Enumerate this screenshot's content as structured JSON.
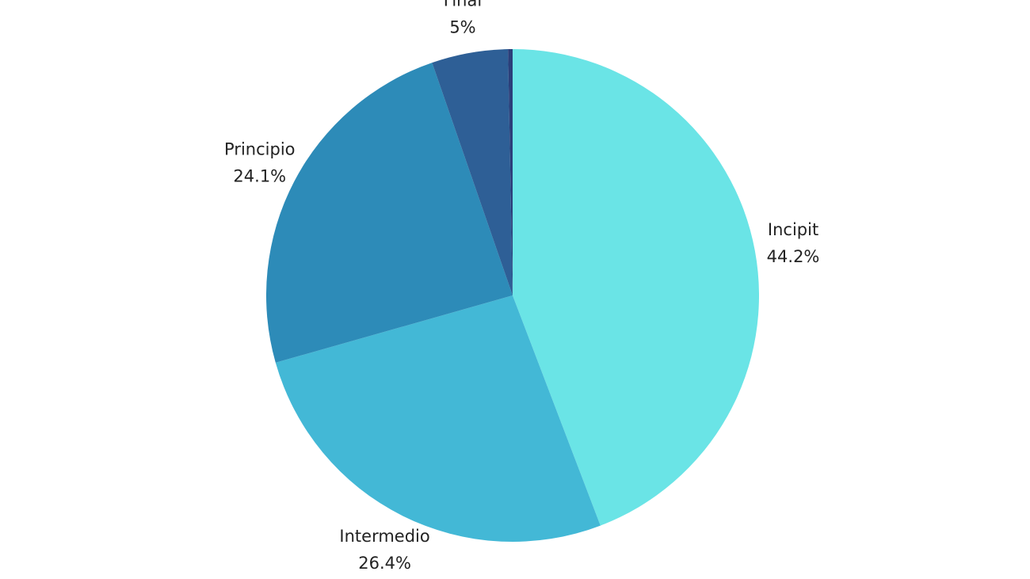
{
  "chart_data": {
    "type": "pie",
    "categories": [
      "Incipit",
      "Intermedio",
      "Principio",
      "Final",
      null
    ],
    "values": [
      44.2,
      26.4,
      24.1,
      5,
      0.3
    ],
    "value_labels": [
      "44.2%",
      "26.4%",
      "24.1%",
      "5%",
      null
    ],
    "colors": [
      "#6ae4e6",
      "#43b8d6",
      "#2d8bb8",
      "#2e5f96",
      "#2b3f7a"
    ]
  }
}
